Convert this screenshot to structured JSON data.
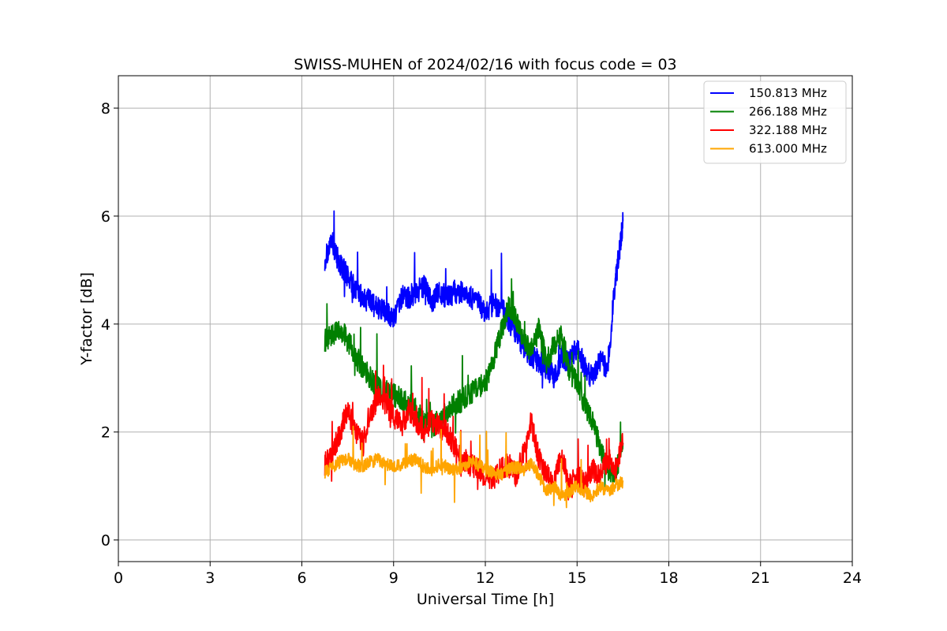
{
  "chart_data": {
    "type": "line",
    "title": "SWISS-MUHEN of 2024/02/16 with focus code = 03",
    "xlabel": "Universal Time [h]",
    "ylabel": "Y-factor [dB]",
    "xlim": [
      0,
      24
    ],
    "ylim": [
      -0.4,
      8.6
    ],
    "xticks": [
      0,
      3,
      6,
      9,
      12,
      15,
      18,
      21,
      24
    ],
    "yticks": [
      0,
      2,
      4,
      6,
      8
    ],
    "grid": true,
    "legend_position": "top-right",
    "series": [
      {
        "name": "150.813 MHz",
        "color": "#0000ff",
        "x": [
          6.75,
          7.0,
          7.25,
          7.5,
          7.75,
          8.0,
          8.25,
          8.5,
          8.75,
          9.0,
          9.25,
          9.5,
          9.75,
          10.0,
          10.25,
          10.5,
          10.75,
          11.0,
          11.25,
          11.5,
          11.75,
          12.0,
          12.25,
          12.5,
          12.75,
          13.0,
          13.25,
          13.5,
          13.75,
          14.0,
          14.25,
          14.5,
          14.75,
          15.0,
          15.25,
          15.5,
          15.75,
          16.0,
          16.25,
          16.4,
          16.5
        ],
        "y": [
          5.2,
          5.5,
          5.1,
          4.9,
          4.6,
          4.5,
          4.4,
          4.3,
          4.2,
          4.1,
          4.5,
          4.5,
          4.6,
          4.7,
          4.4,
          4.6,
          4.5,
          4.6,
          4.6,
          4.5,
          4.4,
          4.2,
          4.4,
          4.3,
          4.1,
          3.8,
          3.6,
          3.4,
          3.3,
          3.2,
          3.0,
          3.4,
          3.3,
          3.6,
          3.2,
          3.0,
          3.3,
          3.2,
          4.8,
          5.4,
          5.9
        ]
      },
      {
        "name": "266.188 MHz",
        "color": "#008000",
        "x": [
          6.75,
          7.0,
          7.25,
          7.5,
          7.75,
          8.0,
          8.25,
          8.5,
          8.75,
          9.0,
          9.25,
          9.5,
          9.75,
          10.0,
          10.25,
          10.5,
          10.75,
          11.0,
          11.25,
          11.5,
          11.75,
          12.0,
          12.25,
          12.5,
          12.75,
          13.0,
          13.25,
          13.5,
          13.75,
          14.0,
          14.25,
          14.5,
          14.75,
          15.0,
          15.25,
          15.5,
          15.75,
          16.0,
          16.25,
          16.5
        ],
        "y": [
          3.7,
          3.8,
          3.9,
          3.7,
          3.4,
          3.2,
          3.0,
          2.8,
          2.8,
          2.7,
          2.6,
          2.5,
          2.4,
          2.2,
          2.1,
          2.2,
          2.4,
          2.5,
          2.6,
          2.7,
          2.8,
          2.9,
          3.3,
          3.8,
          4.3,
          4.1,
          3.7,
          3.5,
          3.9,
          3.3,
          3.6,
          3.8,
          3.1,
          2.9,
          2.5,
          2.2,
          1.7,
          1.3,
          1.2,
          1.8
        ]
      },
      {
        "name": "322.188 MHz",
        "color": "#ff0000",
        "x": [
          6.75,
          7.0,
          7.25,
          7.5,
          7.75,
          8.0,
          8.25,
          8.5,
          8.75,
          9.0,
          9.25,
          9.5,
          9.75,
          10.0,
          10.25,
          10.5,
          10.75,
          11.0,
          11.25,
          11.5,
          11.75,
          12.0,
          12.25,
          12.5,
          12.75,
          13.0,
          13.25,
          13.5,
          13.75,
          14.0,
          14.25,
          14.5,
          14.75,
          15.0,
          15.25,
          15.5,
          15.75,
          16.0,
          16.25,
          16.5
        ],
        "y": [
          1.4,
          1.6,
          2.0,
          2.4,
          2.0,
          1.8,
          2.3,
          2.7,
          2.5,
          2.3,
          2.1,
          2.4,
          2.2,
          2.0,
          2.2,
          2.1,
          2.0,
          1.7,
          1.5,
          1.4,
          1.3,
          1.2,
          1.1,
          1.3,
          1.4,
          1.2,
          1.6,
          2.2,
          1.5,
          1.2,
          1.1,
          1.6,
          1.0,
          1.2,
          1.0,
          1.3,
          1.2,
          1.5,
          1.3,
          1.8
        ]
      },
      {
        "name": "613.000 MHz",
        "color": "#ffa500",
        "x": [
          6.75,
          7.0,
          7.25,
          7.5,
          7.75,
          8.0,
          8.25,
          8.5,
          8.75,
          9.0,
          9.25,
          9.5,
          9.75,
          10.0,
          10.25,
          10.5,
          10.75,
          11.0,
          11.25,
          11.5,
          11.75,
          12.0,
          12.25,
          12.5,
          12.75,
          13.0,
          13.25,
          13.5,
          13.75,
          14.0,
          14.25,
          14.5,
          14.75,
          15.0,
          15.25,
          15.5,
          15.75,
          16.0,
          16.25,
          16.5
        ],
        "y": [
          1.25,
          1.35,
          1.45,
          1.5,
          1.4,
          1.35,
          1.45,
          1.5,
          1.4,
          1.35,
          1.4,
          1.45,
          1.5,
          1.35,
          1.3,
          1.4,
          1.35,
          1.3,
          1.35,
          1.45,
          1.4,
          1.3,
          1.25,
          1.2,
          1.3,
          1.35,
          1.3,
          1.4,
          1.2,
          0.9,
          1.0,
          0.8,
          0.9,
          1.0,
          0.9,
          0.8,
          1.0,
          0.9,
          1.0,
          1.1
        ]
      }
    ]
  }
}
